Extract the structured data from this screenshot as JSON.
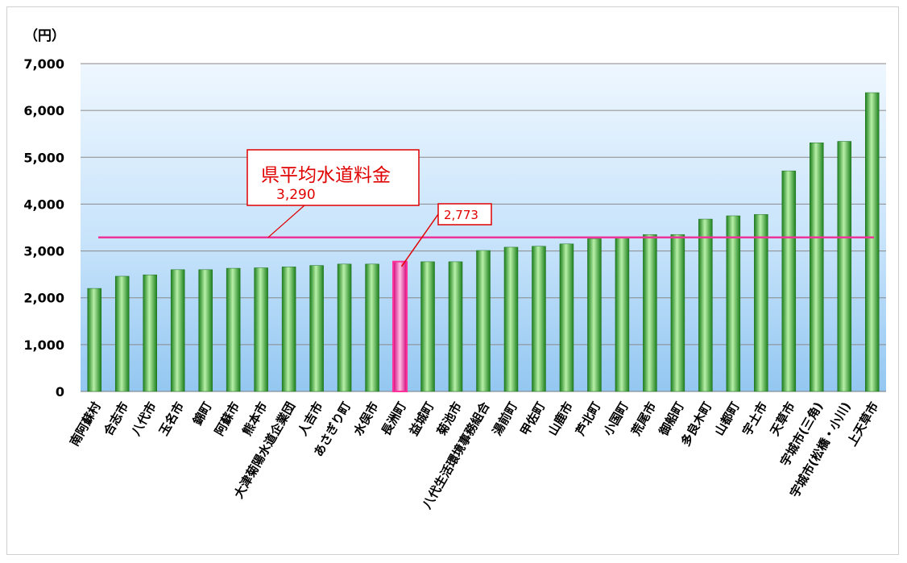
{
  "chart_data": {
    "type": "bar",
    "unit_label": "（円）",
    "y_tick_labels": [
      "0",
      "1,000",
      "2,000",
      "3,000",
      "4,000",
      "5,000",
      "6,000",
      "7,000"
    ],
    "ylim": [
      0,
      7000
    ],
    "grid": true,
    "categories": [
      "南阿蘇村",
      "合志市",
      "八代市",
      "玉名市",
      "錦町",
      "阿蘇市",
      "熊本市",
      "大津菊陽水道企業団",
      "人吉市",
      "あさぎり町",
      "水俣市",
      "長洲町",
      "益城町",
      "菊池市",
      "八代生活環境事務組合",
      "湯前町",
      "甲佐町",
      "山鹿市",
      "芦北町",
      "小国町",
      "荒尾市",
      "御船町",
      "多良木町",
      "山都町",
      "宇土市",
      "天草市",
      "宇城市(三角)",
      "宇城市(松橋・小川)",
      "上天草市"
    ],
    "values": [
      2200,
      2460,
      2490,
      2600,
      2600,
      2630,
      2640,
      2660,
      2690,
      2720,
      2720,
      2773,
      2770,
      2770,
      3010,
      3080,
      3100,
      3150,
      3260,
      3300,
      3350,
      3350,
      3680,
      3750,
      3780,
      4710,
      5310,
      5340,
      6380
    ],
    "highlight_category": "長洲町",
    "colors": {
      "bar": "#33aa33",
      "highlight": "#ff3399",
      "average_line": "#ee3399",
      "callout": "#e00000"
    },
    "average_line": {
      "title": "県平均水道料金",
      "label": "3,290",
      "value": 3290
    },
    "highlight_callout": {
      "label": "2,773"
    }
  }
}
